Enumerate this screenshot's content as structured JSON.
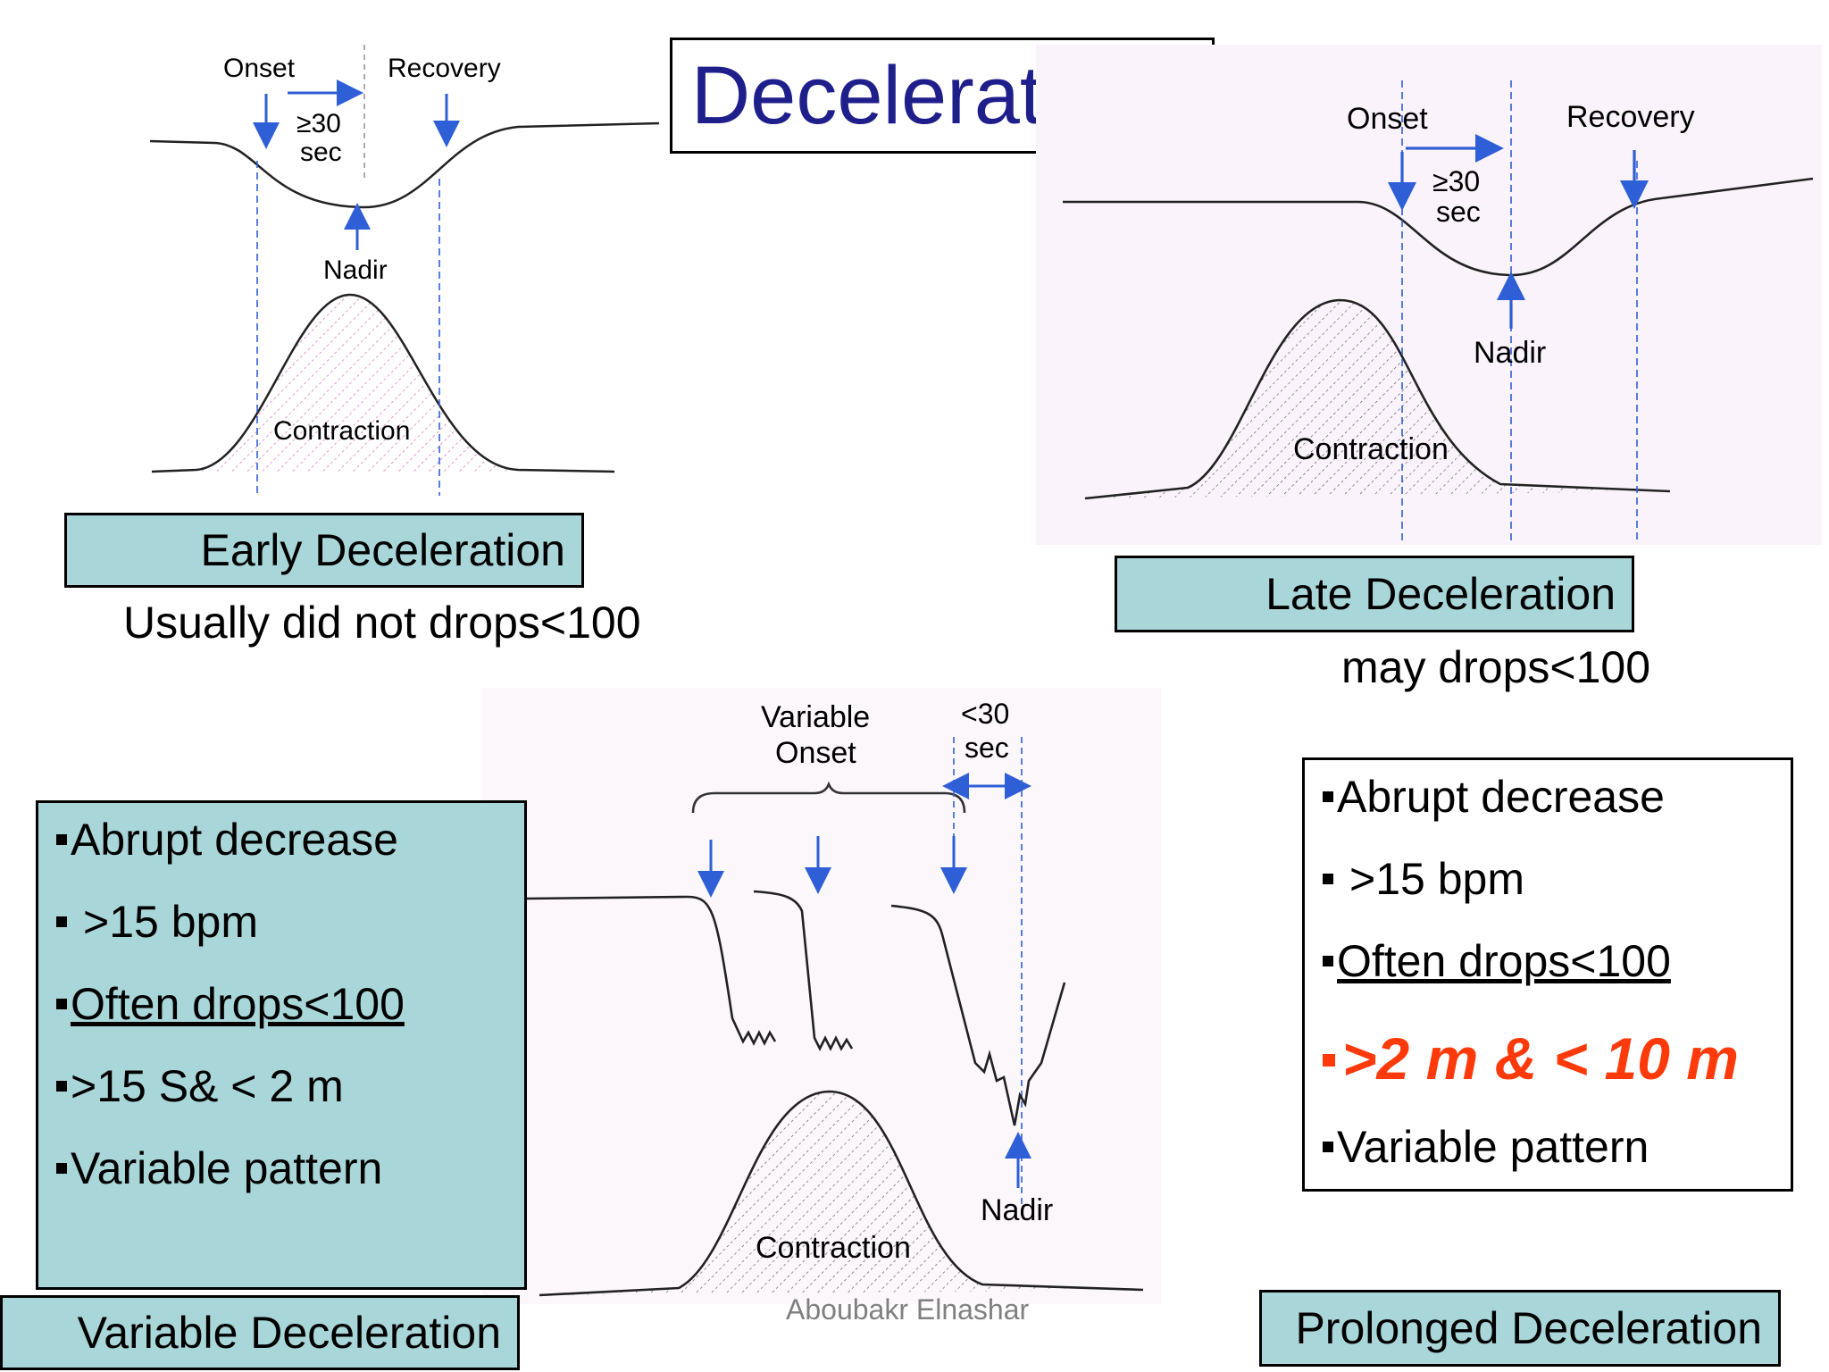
{
  "title": "Decelerations",
  "diagram_labels": {
    "onset": "Onset",
    "recovery": "Recovery",
    "ge30": "≥30",
    "sec": "sec",
    "nadir": "Nadir",
    "contraction": "Contraction",
    "variable": "Variable",
    "lt30": "<30"
  },
  "early": {
    "label": "Early Deceleration",
    "note": "Usually did not  drops<100"
  },
  "late": {
    "label": "Late Deceleration",
    "note": "may drops<100"
  },
  "variable": {
    "label": "Variable Deceleration",
    "bullets": [
      "Abrupt decrease",
      ">15 bpm",
      "Often drops<100",
      ">15 S& < 2 m",
      "Variable pattern"
    ]
  },
  "prolonged": {
    "label": "Prolonged Deceleration",
    "bullets": [
      "Abrupt decrease",
      ">15 bpm",
      "Often drops<100",
      ">2 m & < 10 m",
      "Variable pattern"
    ]
  },
  "credit": "Aboubakr Elnashar",
  "colors": {
    "title": "#1f1f8c",
    "label_fill": "#a9d6d9",
    "arrow_blue": "#2f5fd6",
    "highlight_red": "#ff3a0a"
  }
}
